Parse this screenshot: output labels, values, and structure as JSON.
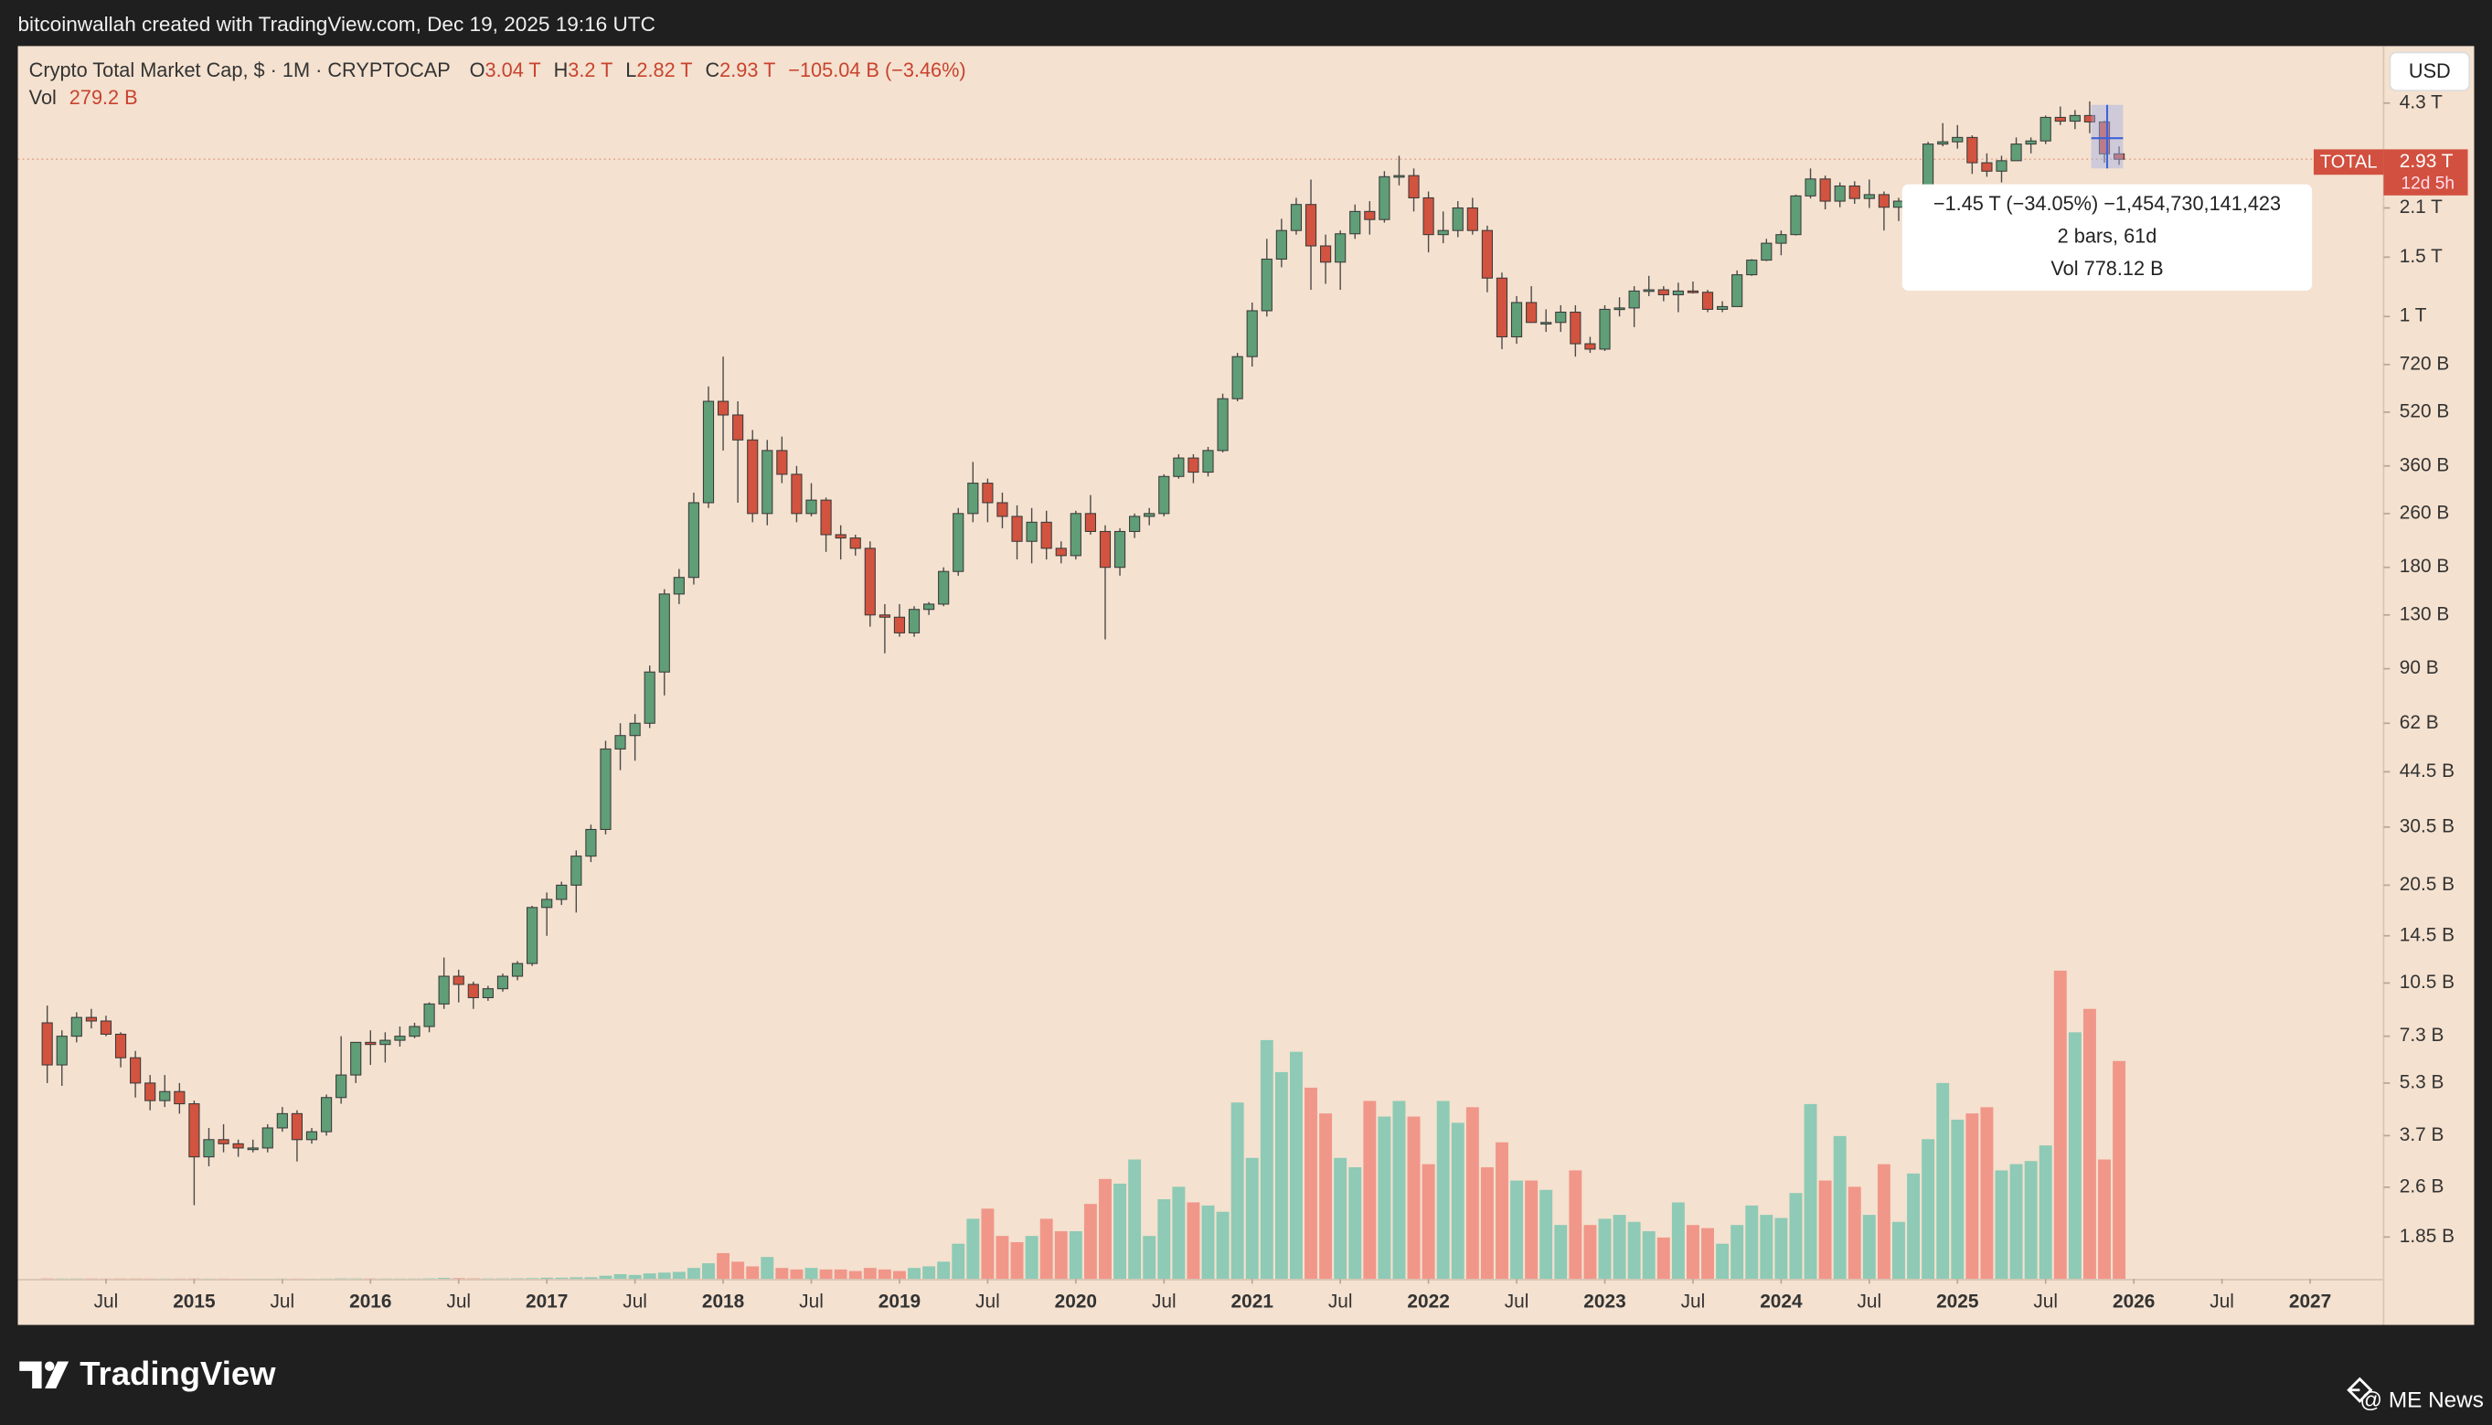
{
  "header": {
    "caption": "bitcoinwallah created with TradingView.com, Dec 19, 2025 19:16 UTC"
  },
  "legend": {
    "symbol": "Crypto Total Market Cap, $ · 1M · CRYPTOCAP",
    "ohlc": [
      {
        "key": "O",
        "text": "3.04 T"
      },
      {
        "key": "H",
        "text": "3.2 T"
      },
      {
        "key": "L",
        "text": "2.82 T"
      },
      {
        "key": "C",
        "text": "2.93 T"
      }
    ],
    "change": "−105.04 B (−3.46%)",
    "volume_key": "Vol",
    "volume_text": "279.2 B"
  },
  "currency_button": "USD",
  "price_tag": {
    "name": "TOTAL",
    "price": "2.93 T",
    "countdown": "12d 5h"
  },
  "measure_tooltip": {
    "lines": [
      "−1.45 T (−34.05%) −1,454,730,141,423",
      "2 bars, 61d",
      "Vol 778.12 B"
    ]
  },
  "footer": {
    "brand": "TradingView",
    "credit": "@ ME News"
  },
  "chart_data": {
    "type": "candlestick",
    "log_scale": true,
    "grid": false,
    "up_color": "#5f9e77",
    "down_color": "#d2533f",
    "volume_up_color": "#8ecab5",
    "volume_down_color": "#f0978a",
    "x": [
      "2014-03",
      "2014-04",
      "2014-05",
      "2014-06",
      "2014-07",
      "2014-08",
      "2014-09",
      "2014-10",
      "2014-11",
      "2014-12",
      "2015-01",
      "2015-02",
      "2015-03",
      "2015-04",
      "2015-05",
      "2015-06",
      "2015-07",
      "2015-08",
      "2015-09",
      "2015-10",
      "2015-11",
      "2015-12",
      "2016-01",
      "2016-02",
      "2016-03",
      "2016-04",
      "2016-05",
      "2016-06",
      "2016-07",
      "2016-08",
      "2016-09",
      "2016-10",
      "2016-11",
      "2016-12",
      "2017-01",
      "2017-02",
      "2017-03",
      "2017-04",
      "2017-05",
      "2017-06",
      "2017-07",
      "2017-08",
      "2017-09",
      "2017-10",
      "2017-11",
      "2017-12",
      "2018-01",
      "2018-02",
      "2018-03",
      "2018-04",
      "2018-05",
      "2018-06",
      "2018-07",
      "2018-08",
      "2018-09",
      "2018-10",
      "2018-11",
      "2018-12",
      "2019-01",
      "2019-02",
      "2019-03",
      "2019-04",
      "2019-05",
      "2019-06",
      "2019-07",
      "2019-08",
      "2019-09",
      "2019-10",
      "2019-11",
      "2019-12",
      "2020-01",
      "2020-02",
      "2020-03",
      "2020-04",
      "2020-05",
      "2020-06",
      "2020-07",
      "2020-08",
      "2020-09",
      "2020-10",
      "2020-11",
      "2020-12",
      "2021-01",
      "2021-02",
      "2021-03",
      "2021-04",
      "2021-05",
      "2021-06",
      "2021-07",
      "2021-08",
      "2021-09",
      "2021-10",
      "2021-11",
      "2021-12",
      "2022-01",
      "2022-02",
      "2022-03",
      "2022-04",
      "2022-05",
      "2022-06",
      "2022-07",
      "2022-08",
      "2022-09",
      "2022-10",
      "2022-11",
      "2022-12",
      "2023-01",
      "2023-02",
      "2023-03",
      "2023-04",
      "2023-05",
      "2023-06",
      "2023-07",
      "2023-08",
      "2023-09",
      "2023-10",
      "2023-11",
      "2023-12",
      "2024-01",
      "2024-02",
      "2024-03",
      "2024-04",
      "2024-05",
      "2024-06",
      "2024-07",
      "2024-08",
      "2024-09",
      "2024-10",
      "2024-11",
      "2024-12",
      "2025-01",
      "2025-02",
      "2025-03",
      "2025-04",
      "2025-05",
      "2025-06",
      "2025-07",
      "2025-08",
      "2025-09",
      "2025-10",
      "2025-11",
      "2025-12"
    ],
    "ohlc": [
      [
        8.0,
        9.0,
        5.3,
        6.0
      ],
      [
        6.0,
        7.6,
        5.2,
        7.3
      ],
      [
        7.3,
        8.6,
        7.0,
        8.3
      ],
      [
        8.3,
        8.8,
        7.7,
        8.1
      ],
      [
        8.1,
        8.4,
        7.3,
        7.4
      ],
      [
        7.4,
        7.5,
        5.9,
        6.3
      ],
      [
        6.3,
        6.6,
        4.8,
        5.3
      ],
      [
        5.3,
        5.6,
        4.4,
        4.7
      ],
      [
        4.7,
        5.6,
        4.5,
        5.0
      ],
      [
        5.0,
        5.3,
        4.3,
        4.6
      ],
      [
        4.6,
        4.7,
        2.3,
        3.2
      ],
      [
        3.2,
        3.9,
        3.0,
        3.6
      ],
      [
        3.6,
        4.0,
        3.3,
        3.5
      ],
      [
        3.5,
        3.6,
        3.2,
        3.4
      ],
      [
        3.4,
        3.6,
        3.3,
        3.4
      ],
      [
        3.4,
        4.0,
        3.3,
        3.9
      ],
      [
        3.9,
        4.5,
        3.8,
        4.3
      ],
      [
        4.3,
        4.4,
        3.1,
        3.6
      ],
      [
        3.6,
        3.9,
        3.5,
        3.8
      ],
      [
        3.8,
        4.9,
        3.7,
        4.8
      ],
      [
        4.8,
        7.3,
        4.6,
        5.6
      ],
      [
        5.6,
        7.0,
        5.3,
        7.0
      ],
      [
        7.0,
        7.6,
        6.0,
        6.9
      ],
      [
        6.9,
        7.5,
        6.1,
        7.1
      ],
      [
        7.1,
        7.8,
        6.8,
        7.3
      ],
      [
        7.3,
        8.0,
        7.2,
        7.8
      ],
      [
        7.8,
        9.2,
        7.5,
        9.1
      ],
      [
        9.1,
        12.5,
        8.8,
        11.0
      ],
      [
        11.0,
        11.5,
        9.2,
        10.4
      ],
      [
        10.4,
        10.6,
        8.8,
        9.5
      ],
      [
        9.5,
        10.3,
        9.3,
        10.1
      ],
      [
        10.1,
        11.2,
        9.9,
        11.0
      ],
      [
        11.0,
        12.2,
        10.7,
        12.0
      ],
      [
        12.0,
        17.8,
        11.8,
        17.6
      ],
      [
        17.6,
        19.5,
        14.5,
        18.6
      ],
      [
        18.6,
        21.0,
        17.9,
        20.5
      ],
      [
        20.5,
        26,
        17,
        25
      ],
      [
        25,
        31,
        24,
        30
      ],
      [
        30,
        55,
        29,
        52
      ],
      [
        52,
        62,
        45,
        57
      ],
      [
        57,
        66,
        48,
        62
      ],
      [
        62,
        92,
        60,
        88
      ],
      [
        88,
        155,
        75,
        150
      ],
      [
        150,
        178,
        140,
        168
      ],
      [
        168,
        300,
        160,
        280
      ],
      [
        280,
        620,
        270,
        560
      ],
      [
        560,
        760,
        400,
        510
      ],
      [
        510,
        560,
        280,
        430
      ],
      [
        430,
        460,
        245,
        260
      ],
      [
        260,
        430,
        240,
        400
      ],
      [
        400,
        440,
        320,
        340
      ],
      [
        340,
        360,
        245,
        260
      ],
      [
        260,
        320,
        255,
        285
      ],
      [
        285,
        290,
        200,
        225
      ],
      [
        225,
        240,
        190,
        220
      ],
      [
        220,
        225,
        195,
        205
      ],
      [
        205,
        215,
        120,
        130
      ],
      [
        130,
        140,
        100,
        128
      ],
      [
        128,
        140,
        112,
        115
      ],
      [
        115,
        138,
        112,
        135
      ],
      [
        135,
        142,
        130,
        140
      ],
      [
        140,
        180,
        138,
        175
      ],
      [
        175,
        270,
        170,
        260
      ],
      [
        260,
        370,
        245,
        320
      ],
      [
        320,
        330,
        245,
        280
      ],
      [
        280,
        300,
        235,
        255
      ],
      [
        255,
        275,
        190,
        215
      ],
      [
        215,
        270,
        185,
        245
      ],
      [
        245,
        265,
        190,
        205
      ],
      [
        205,
        215,
        185,
        195
      ],
      [
        195,
        265,
        190,
        260
      ],
      [
        260,
        295,
        225,
        230
      ],
      [
        230,
        240,
        110,
        180
      ],
      [
        180,
        235,
        170,
        230
      ],
      [
        230,
        260,
        220,
        255
      ],
      [
        255,
        270,
        240,
        260
      ],
      [
        260,
        340,
        255,
        335
      ],
      [
        335,
        390,
        330,
        380
      ],
      [
        380,
        390,
        320,
        345
      ],
      [
        345,
        410,
        335,
        400
      ],
      [
        400,
        590,
        395,
        570
      ],
      [
        570,
        780,
        560,
        760
      ],
      [
        760,
        1100,
        710,
        1040
      ],
      [
        1040,
        1700,
        1000,
        1480
      ],
      [
        1480,
        1950,
        1400,
        1800
      ],
      [
        1800,
        2250,
        1750,
        2150
      ],
      [
        2150,
        2550,
        1200,
        1620
      ],
      [
        1620,
        1750,
        1250,
        1450
      ],
      [
        1450,
        1800,
        1200,
        1760
      ],
      [
        1760,
        2150,
        1700,
        2050
      ],
      [
        2050,
        2200,
        1750,
        1940
      ],
      [
        1940,
        2700,
        1900,
        2600
      ],
      [
        2600,
        3000,
        2450,
        2620
      ],
      [
        2620,
        2750,
        2050,
        2250
      ],
      [
        2250,
        2350,
        1550,
        1750
      ],
      [
        1750,
        2050,
        1650,
        1800
      ],
      [
        1800,
        2200,
        1720,
        2100
      ],
      [
        2100,
        2250,
        1750,
        1800
      ],
      [
        1800,
        1860,
        1180,
        1300
      ],
      [
        1300,
        1350,
        800,
        870
      ],
      [
        870,
        1150,
        830,
        1100
      ],
      [
        1100,
        1230,
        960,
        960
      ],
      [
        960,
        1050,
        900,
        960
      ],
      [
        960,
        1080,
        900,
        1030
      ],
      [
        1030,
        1080,
        760,
        830
      ],
      [
        830,
        870,
        780,
        800
      ],
      [
        800,
        1080,
        790,
        1050
      ],
      [
        1050,
        1140,
        1000,
        1060
      ],
      [
        1060,
        1230,
        930,
        1190
      ],
      [
        1190,
        1320,
        1150,
        1200
      ],
      [
        1200,
        1230,
        1110,
        1160
      ],
      [
        1160,
        1260,
        1030,
        1190
      ],
      [
        1190,
        1270,
        1170,
        1180
      ],
      [
        1180,
        1200,
        1030,
        1050
      ],
      [
        1050,
        1110,
        1030,
        1070
      ],
      [
        1070,
        1370,
        1070,
        1330
      ],
      [
        1330,
        1480,
        1320,
        1470
      ],
      [
        1470,
        1700,
        1460,
        1650
      ],
      [
        1650,
        1800,
        1520,
        1750
      ],
      [
        1750,
        2300,
        1740,
        2280
      ],
      [
        2280,
        2750,
        2240,
        2560
      ],
      [
        2560,
        2620,
        2080,
        2200
      ],
      [
        2200,
        2500,
        2110,
        2440
      ],
      [
        2440,
        2520,
        2160,
        2240
      ],
      [
        2240,
        2550,
        2100,
        2300
      ],
      [
        2300,
        2350,
        1800,
        2110
      ],
      [
        2110,
        2250,
        1920,
        2200
      ],
      [
        2200,
        2400,
        2100,
        2270
      ],
      [
        2270,
        3300,
        2240,
        3250
      ],
      [
        3250,
        3750,
        3200,
        3300
      ],
      [
        3300,
        3700,
        3150,
        3400
      ],
      [
        3400,
        3450,
        2650,
        2860
      ],
      [
        2860,
        3050,
        2600,
        2700
      ],
      [
        2700,
        3000,
        2500,
        2900
      ],
      [
        2900,
        3400,
        2900,
        3250
      ],
      [
        3250,
        3400,
        3050,
        3320
      ],
      [
        3320,
        3950,
        3250,
        3900
      ],
      [
        3900,
        4200,
        3700,
        3800
      ],
      [
        3800,
        4100,
        3600,
        3950
      ],
      [
        3950,
        4350,
        3500,
        3780
      ],
      [
        3780,
        3810,
        2860,
        3040
      ],
      [
        3040,
        3200,
        2820,
        2930
      ]
    ],
    "volume": [
      0.5,
      0.4,
      0.4,
      0.4,
      0.3,
      0.4,
      0.4,
      0.3,
      0.3,
      0.3,
      0.4,
      0.3,
      0.3,
      0.2,
      0.2,
      0.2,
      0.3,
      0.3,
      0.2,
      0.3,
      0.6,
      0.5,
      0.4,
      0.4,
      0.4,
      0.4,
      0.6,
      1.2,
      0.9,
      0.6,
      0.5,
      0.6,
      0.7,
      0.9,
      1.5,
      1.5,
      2,
      2,
      4,
      6,
      5,
      7,
      8,
      9,
      14,
      20,
      33,
      22,
      16,
      28,
      14,
      12,
      14,
      12,
      12,
      10,
      14,
      12,
      10,
      14,
      16,
      22,
      45,
      77,
      90,
      55,
      47,
      55,
      77,
      61,
      61,
      96,
      128,
      122,
      153,
      55,
      102,
      118,
      98,
      94,
      86,
      226,
      155,
      306,
      265,
      291,
      245,
      212,
      155,
      143,
      228,
      208,
      228,
      208,
      147,
      228,
      200,
      220,
      143,
      175,
      126,
      126,
      114,
      69,
      139,
      69,
      77,
      82,
      73,
      61,
      53,
      98,
      69,
      65,
      45,
      69,
      94,
      82,
      78,
      110,
      224,
      126,
      183,
      118,
      82,
      147,
      73,
      135,
      179,
      251,
      204,
      212,
      220,
      139,
      147,
      151,
      171,
      395,
      316,
      346,
      153,
      279.2
    ],
    "xlim": [
      "2014-01",
      "2027-06"
    ],
    "ylim": [
      1.39,
      6350
    ],
    "volume_lim": [
      0,
      1580
    ],
    "yticks": [
      {
        "value": 4300,
        "label": "4.3 T"
      },
      {
        "value": 2100,
        "label": "2.1 T"
      },
      {
        "value": 1500,
        "label": "1.5 T"
      },
      {
        "value": 1000,
        "label": "1 T"
      },
      {
        "value": 720,
        "label": "720 B"
      },
      {
        "value": 520,
        "label": "520 B"
      },
      {
        "value": 360,
        "label": "360 B"
      },
      {
        "value": 260,
        "label": "260 B"
      },
      {
        "value": 180,
        "label": "180 B"
      },
      {
        "value": 130,
        "label": "130 B"
      },
      {
        "value": 90,
        "label": "90 B"
      },
      {
        "value": 62,
        "label": "62 B"
      },
      {
        "value": 44.5,
        "label": "44.5 B"
      },
      {
        "value": 30.5,
        "label": "30.5 B"
      },
      {
        "value": 20.5,
        "label": "20.5 B"
      },
      {
        "value": 14.5,
        "label": "14.5 B"
      },
      {
        "value": 10.5,
        "label": "10.5 B"
      },
      {
        "value": 7.3,
        "label": "7.3 B"
      },
      {
        "value": 5.3,
        "label": "5.3 B"
      },
      {
        "value": 3.7,
        "label": "3.7 B"
      },
      {
        "value": 2.6,
        "label": "2.6 B"
      },
      {
        "value": 1.85,
        "label": "1.85 B"
      }
    ],
    "xticks": [
      {
        "value": "2014-07",
        "label": "Jul"
      },
      {
        "value": "2015-01",
        "label": "2015"
      },
      {
        "value": "2015-07",
        "label": "Jul"
      },
      {
        "value": "2016-01",
        "label": "2016"
      },
      {
        "value": "2016-07",
        "label": "Jul"
      },
      {
        "value": "2017-01",
        "label": "2017"
      },
      {
        "value": "2017-07",
        "label": "Jul"
      },
      {
        "value": "2018-01",
        "label": "2018"
      },
      {
        "value": "2018-07",
        "label": "Jul"
      },
      {
        "value": "2019-01",
        "label": "2019"
      },
      {
        "value": "2019-07",
        "label": "Jul"
      },
      {
        "value": "2020-01",
        "label": "2020"
      },
      {
        "value": "2020-07",
        "label": "Jul"
      },
      {
        "value": "2021-01",
        "label": "2021"
      },
      {
        "value": "2021-07",
        "label": "Jul"
      },
      {
        "value": "2022-01",
        "label": "2022"
      },
      {
        "value": "2022-07",
        "label": "Jul"
      },
      {
        "value": "2023-01",
        "label": "2023"
      },
      {
        "value": "2023-07",
        "label": "Jul"
      },
      {
        "value": "2024-01",
        "label": "2024"
      },
      {
        "value": "2024-07",
        "label": "Jul"
      },
      {
        "value": "2025-01",
        "label": "2025"
      },
      {
        "value": "2025-07",
        "label": "Jul"
      },
      {
        "value": "2026-01",
        "label": "2026"
      },
      {
        "value": "2026-07",
        "label": "Jul"
      },
      {
        "value": "2027-01",
        "label": "2027"
      }
    ]
  }
}
